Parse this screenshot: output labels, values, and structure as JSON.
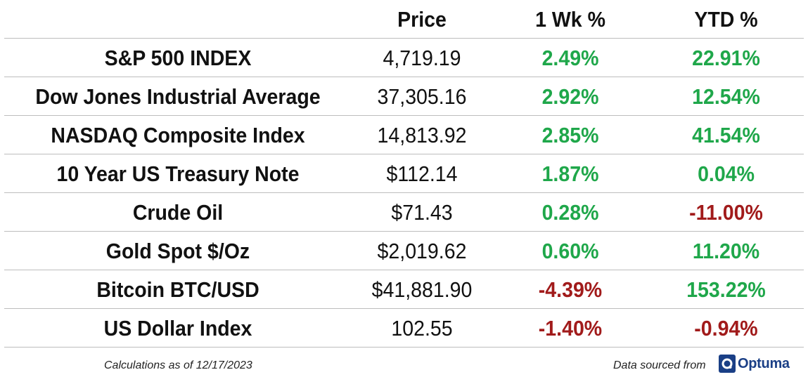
{
  "header": {
    "name": "",
    "price": "Price",
    "wk": "1 Wk %",
    "ytd": "YTD %"
  },
  "rows": [
    {
      "name": "S&P 500 INDEX",
      "price": "4,719.19",
      "wk": "2.49%",
      "wk_dir": "pos",
      "ytd": "22.91%",
      "ytd_dir": "pos"
    },
    {
      "name": "Dow Jones Industrial Average",
      "price": "37,305.16",
      "wk": "2.92%",
      "wk_dir": "pos",
      "ytd": "12.54%",
      "ytd_dir": "pos"
    },
    {
      "name": "NASDAQ Composite Index",
      "price": "14,813.92",
      "wk": "2.85%",
      "wk_dir": "pos",
      "ytd": "41.54%",
      "ytd_dir": "pos"
    },
    {
      "name": "10 Year US Treasury Note",
      "price": "$112.14",
      "wk": "1.87%",
      "wk_dir": "pos",
      "ytd": "0.04%",
      "ytd_dir": "pos"
    },
    {
      "name": "Crude Oil",
      "price": "$71.43",
      "wk": "0.28%",
      "wk_dir": "pos",
      "ytd": "-11.00%",
      "ytd_dir": "neg"
    },
    {
      "name": "Gold Spot $/Oz",
      "price": "$2,019.62",
      "wk": "0.60%",
      "wk_dir": "pos",
      "ytd": "11.20%",
      "ytd_dir": "pos"
    },
    {
      "name": "Bitcoin BTC/USD",
      "price": "$41,881.90",
      "wk": "-4.39%",
      "wk_dir": "neg",
      "ytd": "153.22%",
      "ytd_dir": "pos"
    },
    {
      "name": "US Dollar Index",
      "price": "102.55",
      "wk": "-1.40%",
      "wk_dir": "neg",
      "ytd": "-0.94%",
      "ytd_dir": "neg"
    }
  ],
  "footer": {
    "calc_note": "Calculations as of 12/17/2023",
    "source_note": "Data sourced from",
    "logo_text": "Optuma",
    "logo_icon": "optuma-logo-icon"
  },
  "colors": {
    "positive": "#1fa74a",
    "negative": "#a11b1b",
    "logo": "#1a3f86"
  }
}
